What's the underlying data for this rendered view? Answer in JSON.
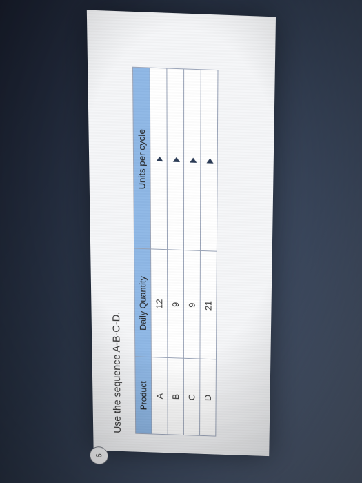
{
  "question_number": "6",
  "prompt_text": "Use the sequence A-B-C-D.",
  "table": {
    "type": "table",
    "header_bg": "#8fb8e6",
    "border_color": "#9aa4b8",
    "background_color": "#ffffff",
    "font_size": 13,
    "columns": [
      {
        "label": "Product",
        "width_pct": 22,
        "align": "center"
      },
      {
        "label": "Daily Quantity",
        "width_pct": 30,
        "align": "center"
      },
      {
        "label": "Units per cycle",
        "width_pct": 48,
        "align": "left"
      }
    ],
    "rows": [
      {
        "product": "A",
        "daily_quantity": "12",
        "units_per_cycle": ""
      },
      {
        "product": "B",
        "daily_quantity": "9",
        "units_per_cycle": ""
      },
      {
        "product": "C",
        "daily_quantity": "9",
        "units_per_cycle": ""
      },
      {
        "product": "D",
        "daily_quantity": "21",
        "units_per_cycle": ""
      }
    ],
    "dropdown_marker_color": "#2a3a55"
  },
  "page_bg": "#f5f6f8"
}
